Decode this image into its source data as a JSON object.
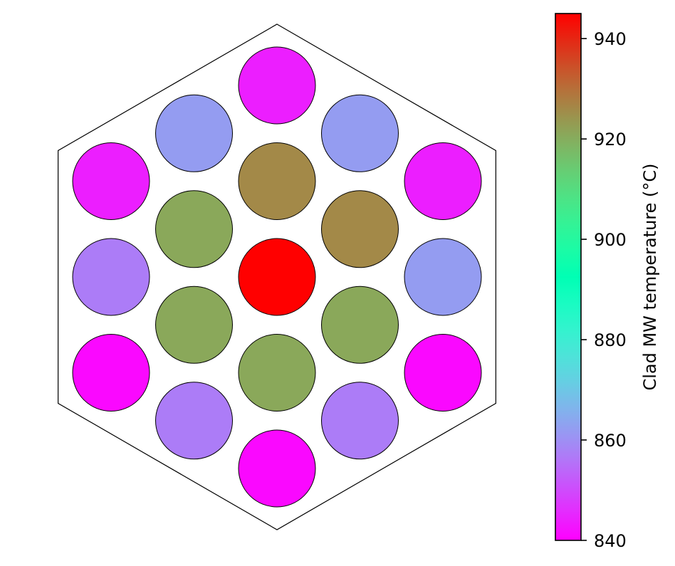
{
  "chart_data": {
    "type": "heatmap",
    "title": "",
    "colorbar": {
      "label": "Clad MW temperature (°C)",
      "min": 840,
      "max": 945,
      "ticks": [
        "840",
        "860",
        "880",
        "900",
        "920",
        "940"
      ],
      "tick_values": [
        840,
        860,
        880,
        900,
        920,
        940
      ],
      "colormap": "rainbow"
    },
    "lattice": "hexagonal",
    "pins": [
      {
        "ring": 0,
        "pos": "center",
        "q": 0,
        "r": 0,
        "value": 945
      },
      {
        "ring": 1,
        "pos": "top",
        "q": 0,
        "r": -1,
        "value": 926
      },
      {
        "ring": 1,
        "pos": "upper-right",
        "q": 1,
        "r": -1,
        "value": 926
      },
      {
        "ring": 1,
        "pos": "lower-right",
        "q": 1,
        "r": 0,
        "value": 921
      },
      {
        "ring": 1,
        "pos": "bottom",
        "q": 0,
        "r": 1,
        "value": 921
      },
      {
        "ring": 1,
        "pos": "lower-left",
        "q": -1,
        "r": 1,
        "value": 921
      },
      {
        "ring": 1,
        "pos": "upper-left",
        "q": -1,
        "r": 0,
        "value": 921
      },
      {
        "ring": 2,
        "pos": "top",
        "q": 0,
        "r": -2,
        "value": 844
      },
      {
        "ring": 2,
        "pos": "top-right-mid",
        "q": 1,
        "r": -2,
        "value": 862
      },
      {
        "ring": 2,
        "pos": "upper-right-corner",
        "q": 2,
        "r": -2,
        "value": 844
      },
      {
        "ring": 2,
        "pos": "right-mid",
        "q": 2,
        "r": -1,
        "value": 862
      },
      {
        "ring": 2,
        "pos": "lower-right-corner",
        "q": 2,
        "r": 0,
        "value": 841
      },
      {
        "ring": 2,
        "pos": "bottom-right-mid",
        "q": 1,
        "r": 1,
        "value": 857
      },
      {
        "ring": 2,
        "pos": "bottom",
        "q": 0,
        "r": 2,
        "value": 841
      },
      {
        "ring": 2,
        "pos": "bottom-left-mid",
        "q": -1,
        "r": 2,
        "value": 857
      },
      {
        "ring": 2,
        "pos": "lower-left-corner",
        "q": -2,
        "r": 2,
        "value": 841
      },
      {
        "ring": 2,
        "pos": "left-mid",
        "q": -2,
        "r": 1,
        "value": 857
      },
      {
        "ring": 2,
        "pos": "upper-left-corner",
        "q": -2,
        "r": 0,
        "value": 844
      },
      {
        "ring": 2,
        "pos": "top-left-mid",
        "q": -1,
        "r": -1,
        "value": 862
      }
    ]
  }
}
